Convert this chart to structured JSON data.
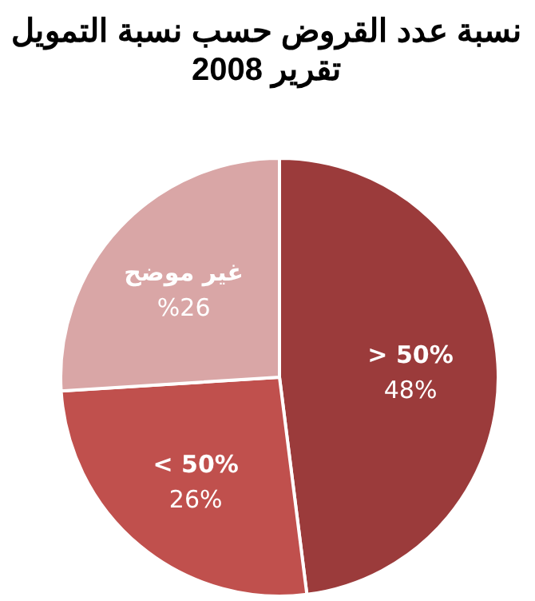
{
  "chart_data": {
    "type": "pie",
    "title": "نسبة عدد القروض حسب نسبة التمويل\nتقرير 2008",
    "categories": [
      "> 50%",
      "< 50%",
      "غير موضح"
    ],
    "values": [
      48,
      26,
      26
    ],
    "colors": [
      "#9b3b3b",
      "#c0504d",
      "#d9a6a6"
    ],
    "value_labels": [
      "48%",
      "26%",
      "%26"
    ],
    "legend": false
  }
}
